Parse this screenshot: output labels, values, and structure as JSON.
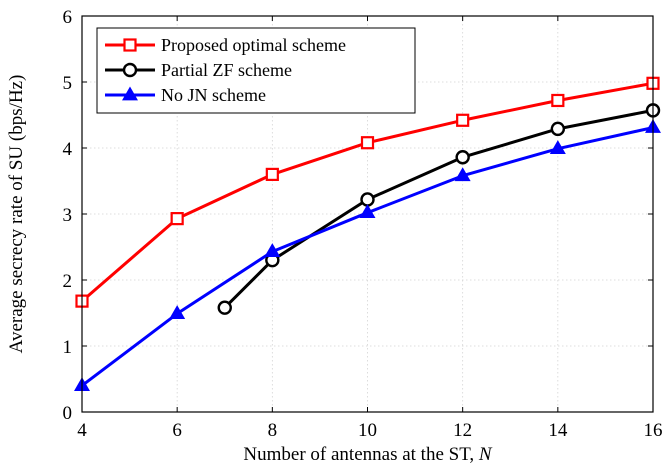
{
  "chart_data": {
    "type": "line",
    "title": "",
    "xlabel": "Number of antennas at the ST, ",
    "xlabel_var": "N",
    "ylabel": "Average secrecy rate of SU (bps/Hz)",
    "xlim": [
      4,
      16
    ],
    "ylim": [
      0,
      6
    ],
    "xticks": [
      4,
      6,
      8,
      10,
      12,
      14,
      16
    ],
    "yticks": [
      0,
      1,
      2,
      3,
      4,
      5,
      6
    ],
    "xtick_labels": [
      "4",
      "6",
      "8",
      "10",
      "12",
      "14",
      "16"
    ],
    "ytick_labels": [
      "0",
      "1",
      "2",
      "3",
      "4",
      "5",
      "6"
    ],
    "grid": true,
    "legend_position": "top-left",
    "series": [
      {
        "name": "Proposed optimal scheme",
        "color": "#ff0000",
        "marker": "square",
        "x": [
          4,
          6,
          8,
          10,
          12,
          14,
          16
        ],
        "y": [
          1.68,
          2.93,
          3.6,
          4.08,
          4.42,
          4.72,
          4.98
        ]
      },
      {
        "name": "Partial ZF scheme",
        "color": "#000000",
        "marker": "circle",
        "x": [
          7,
          8,
          10,
          12,
          14,
          16
        ],
        "y": [
          1.58,
          2.3,
          3.22,
          3.86,
          4.29,
          4.57
        ]
      },
      {
        "name": "No JN scheme",
        "color": "#0000ff",
        "marker": "triangle",
        "x": [
          4,
          6,
          8,
          10,
          12,
          14,
          16
        ],
        "y": [
          0.4,
          1.49,
          2.43,
          3.02,
          3.58,
          3.99,
          4.31
        ]
      }
    ]
  }
}
